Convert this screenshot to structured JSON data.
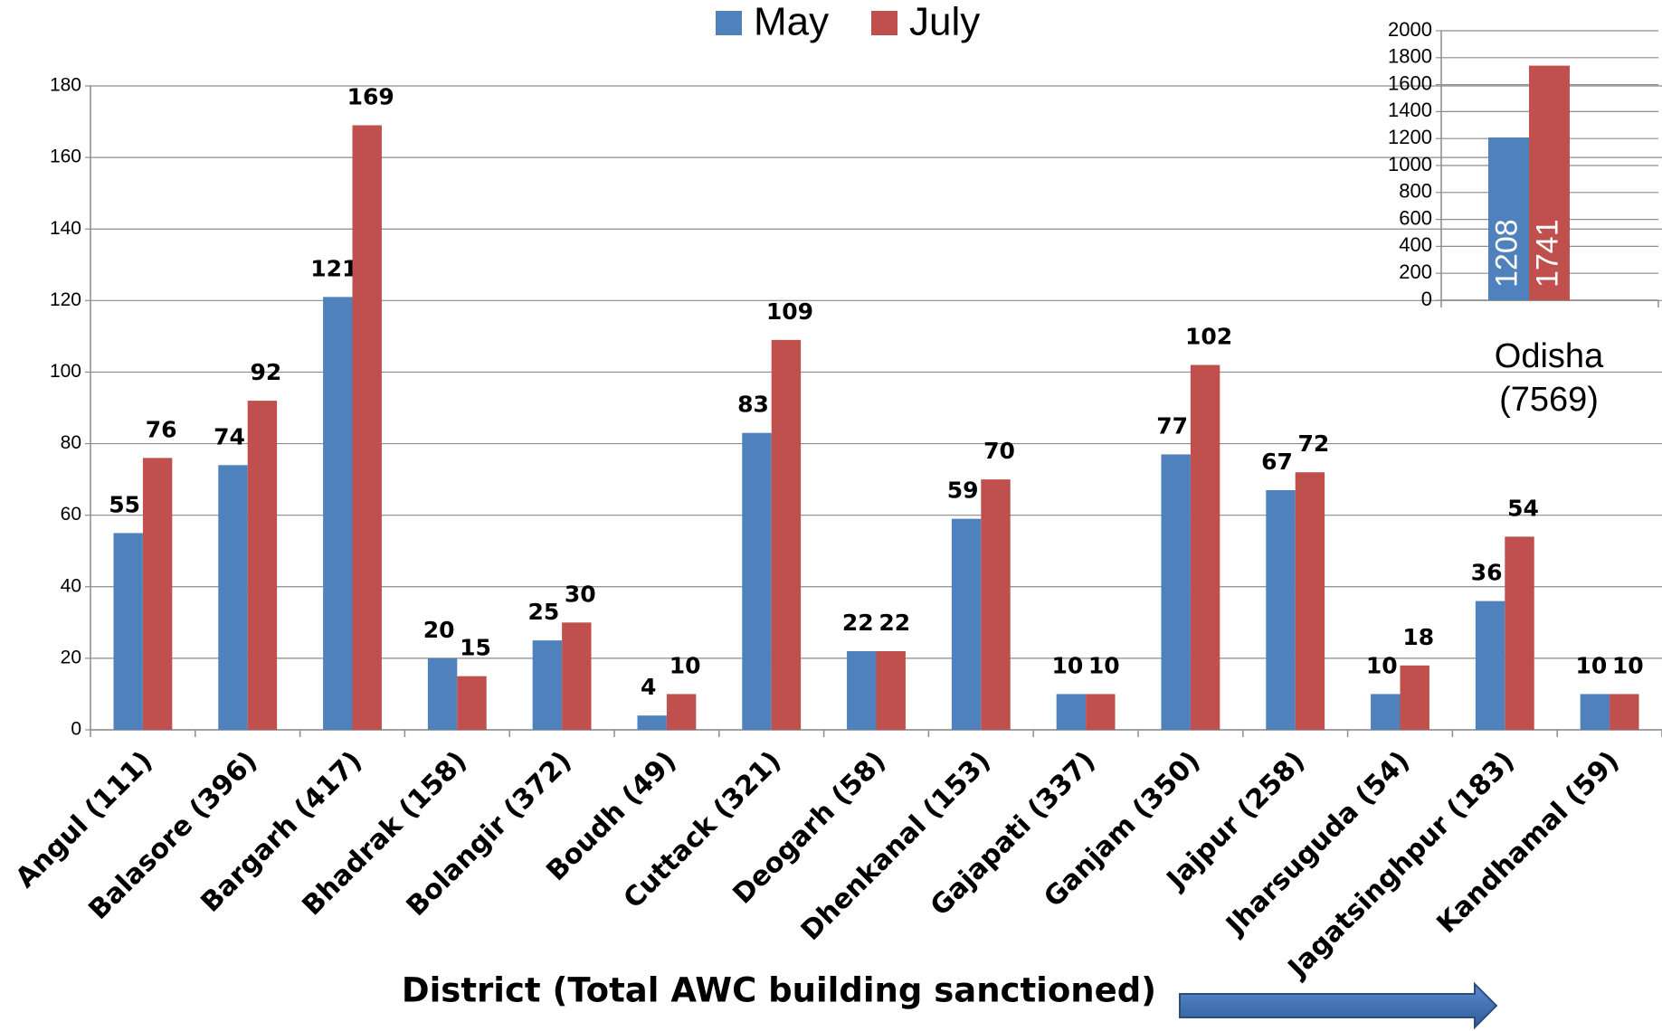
{
  "chart_data": [
    {
      "type": "bar",
      "x_label": "District (Total AWC building  sanctioned)",
      "categories": [
        "Angul (111)",
        "Balasore (396)",
        "Bargarh (417)",
        "Bhadrak (158)",
        "Bolangir (372)",
        "Boudh (49)",
        "Cuttack (321)",
        "Deogarh (58)",
        "Dhenkanal (153)",
        "Gajapati (337)",
        "Ganjam (350)",
        "Jajpur (258)",
        "Jharsuguda (54)",
        "Jagatsinghpur (183)",
        "Kandhamal (59)"
      ],
      "series": [
        {
          "name": "May",
          "color": "#4f81bd",
          "values": [
            55,
            74,
            121,
            20,
            25,
            4,
            83,
            22,
            59,
            10,
            77,
            67,
            10,
            36,
            10
          ]
        },
        {
          "name": "July",
          "color": "#c0504d",
          "values": [
            76,
            92,
            169,
            15,
            30,
            10,
            109,
            22,
            70,
            10,
            102,
            72,
            18,
            54,
            10
          ]
        }
      ],
      "ylim": [
        0,
        180
      ],
      "yticks": [
        0,
        20,
        40,
        60,
        80,
        100,
        120,
        140,
        160,
        180
      ],
      "grid": true
    },
    {
      "type": "bar",
      "categories": [
        "Odisha (7569)"
      ],
      "series": [
        {
          "color": "#4f81bd",
          "values": [
            1208
          ]
        },
        {
          "color": "#c0504d",
          "values": [
            1741
          ]
        }
      ],
      "ylim": [
        0,
        2000
      ],
      "yticks": [
        0,
        200,
        400,
        600,
        800,
        1000,
        1200,
        1400,
        1600,
        1800,
        2000
      ],
      "grid": true
    }
  ]
}
